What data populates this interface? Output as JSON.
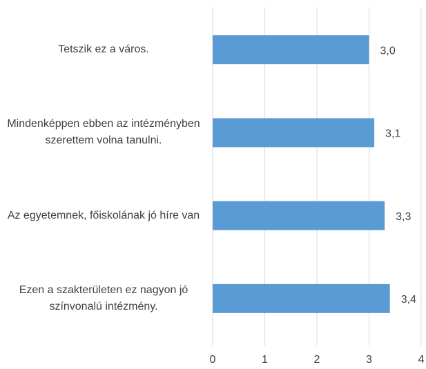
{
  "chart_data": {
    "type": "barh",
    "categories": [
      "Tetszik ez a város.",
      "Mindenképpen ebben az intézményben szerettem volna tanulni.",
      "Az egyetemnek, főiskolának jó híre van",
      "Ezen a szakterületen ez nagyon jó színvonalú intézmény."
    ],
    "values": [
      3.0,
      3.1,
      3.3,
      3.4
    ],
    "value_labels": [
      "3,0",
      "3,1",
      "3,3",
      "3,4"
    ],
    "color": "#5b9bd5",
    "xlim": [
      0,
      4
    ],
    "xticks": [
      0,
      1,
      2,
      3,
      4
    ],
    "grid": true
  }
}
